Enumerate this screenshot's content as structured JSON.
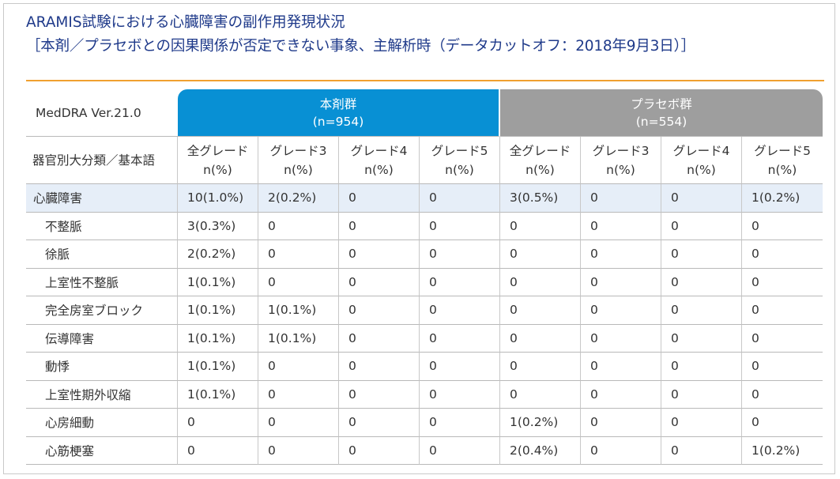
{
  "title": {
    "line1": "ARAMIS試験における心臓障害の副作用発現状況",
    "line2": "［本剤／プラセボとの因果関係が否定できない事象、主解析時（データカットオフ：2018年9月3日）］"
  },
  "table": {
    "version": "MedDRA Ver.21.0",
    "category_header": "器官別大分類／基本語",
    "groups": [
      {
        "name": "本剤群",
        "n": "(n=954)"
      },
      {
        "name": "プラセボ群",
        "n": "(n=554)"
      }
    ],
    "columns": [
      {
        "label": "全グレード",
        "unit": "n(%)"
      },
      {
        "label": "グレード3",
        "unit": "n(%)"
      },
      {
        "label": "グレード4",
        "unit": "n(%)"
      },
      {
        "label": "グレード5",
        "unit": "n(%)"
      },
      {
        "label": "全グレード",
        "unit": "n(%)"
      },
      {
        "label": "グレード3",
        "unit": "n(%)"
      },
      {
        "label": "グレード4",
        "unit": "n(%)"
      },
      {
        "label": "グレード5",
        "unit": "n(%)"
      }
    ],
    "rows": [
      {
        "term": "心臓障害",
        "values": [
          "10(1.0%)",
          "2(0.2%)",
          "0",
          "0",
          "3(0.5%)",
          "0",
          "0",
          "1(0.2%)"
        ]
      },
      {
        "term": "不整脈",
        "values": [
          "3(0.3%)",
          "0",
          "0",
          "0",
          "0",
          "0",
          "0",
          "0"
        ]
      },
      {
        "term": "徐脈",
        "values": [
          "2(0.2%)",
          "0",
          "0",
          "0",
          "0",
          "0",
          "0",
          "0"
        ]
      },
      {
        "term": "上室性不整脈",
        "values": [
          "1(0.1%)",
          "0",
          "0",
          "0",
          "0",
          "0",
          "0",
          "0"
        ]
      },
      {
        "term": "完全房室ブロック",
        "values": [
          "1(0.1%)",
          "1(0.1%)",
          "0",
          "0",
          "0",
          "0",
          "0",
          "0"
        ]
      },
      {
        "term": "伝導障害",
        "values": [
          "1(0.1%)",
          "1(0.1%)",
          "0",
          "0",
          "0",
          "0",
          "0",
          "0"
        ]
      },
      {
        "term": "動悸",
        "values": [
          "1(0.1%)",
          "0",
          "0",
          "0",
          "0",
          "0",
          "0",
          "0"
        ]
      },
      {
        "term": "上室性期外収縮",
        "values": [
          "1(0.1%)",
          "0",
          "0",
          "0",
          "0",
          "0",
          "0",
          "0"
        ]
      },
      {
        "term": "心房細動",
        "values": [
          "0",
          "0",
          "0",
          "0",
          "1(0.2%)",
          "0",
          "0",
          "0"
        ]
      },
      {
        "term": "心筋梗塞",
        "values": [
          "0",
          "0",
          "0",
          "0",
          "2(0.4%)",
          "0",
          "0",
          "1(0.2%)"
        ]
      }
    ]
  },
  "colors": {
    "title": "#1f3a8a",
    "rule": "#f0a030",
    "drug_group": "#0890d4",
    "placebo_group": "#9e9e9e",
    "soc_row": "#e6eef8"
  }
}
